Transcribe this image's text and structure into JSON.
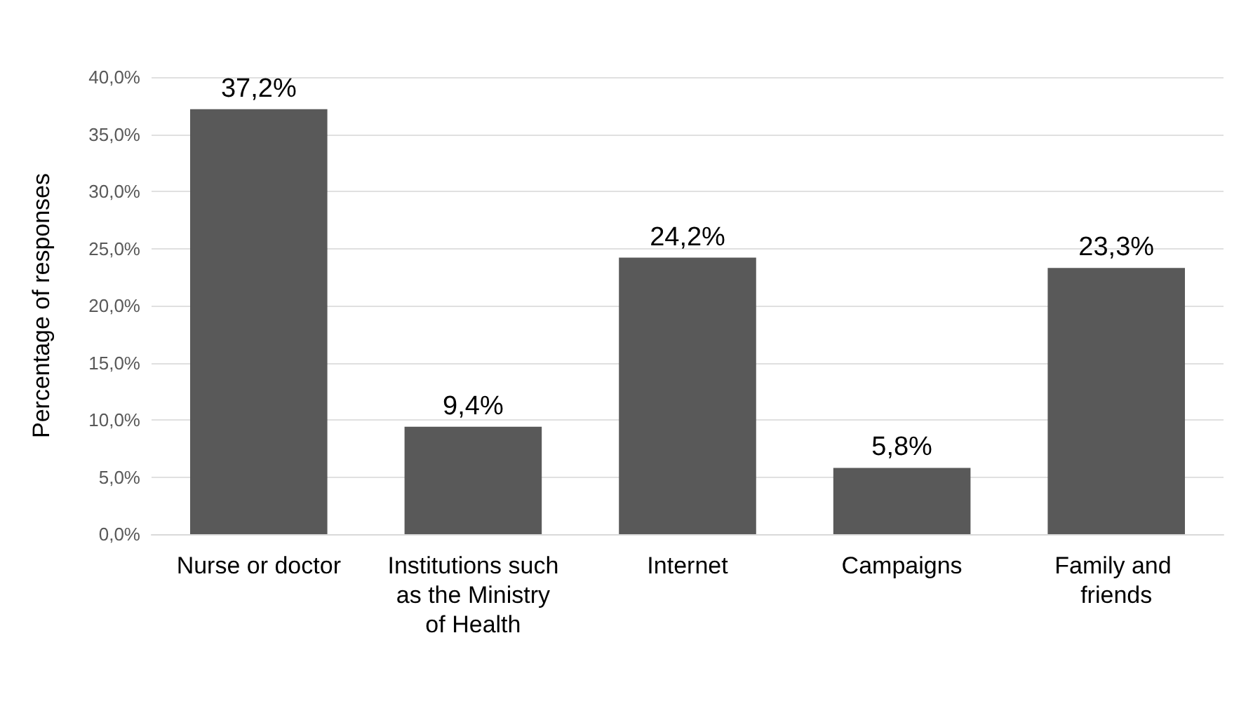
{
  "chart_data": {
    "type": "bar",
    "ylabel": "Percentage of responses",
    "categories": [
      "Nurse or doctor",
      "Institutions such as the Ministry of Health",
      "Internet",
      "Campaigns",
      "Family and friends"
    ],
    "values": [
      37.2,
      9.4,
      24.2,
      5.8,
      23.3
    ],
    "value_labels": [
      "37,2%",
      "9,4%",
      "24,2%",
      "5,8%",
      "23,3%"
    ],
    "color": "#595959",
    "ylim": [
      0,
      40
    ],
    "yticks": [
      {
        "value": 0,
        "label": "0,0%"
      },
      {
        "value": 5,
        "label": "5,0%"
      },
      {
        "value": 10,
        "label": "10,0%"
      },
      {
        "value": 15,
        "label": "15,0%"
      },
      {
        "value": 20,
        "label": "20,0%"
      },
      {
        "value": 25,
        "label": "25,0%"
      },
      {
        "value": 30,
        "label": "30,0%"
      },
      {
        "value": 35,
        "label": "35,0%"
      },
      {
        "value": 40,
        "label": "40,0%"
      }
    ],
    "grid": "y"
  }
}
